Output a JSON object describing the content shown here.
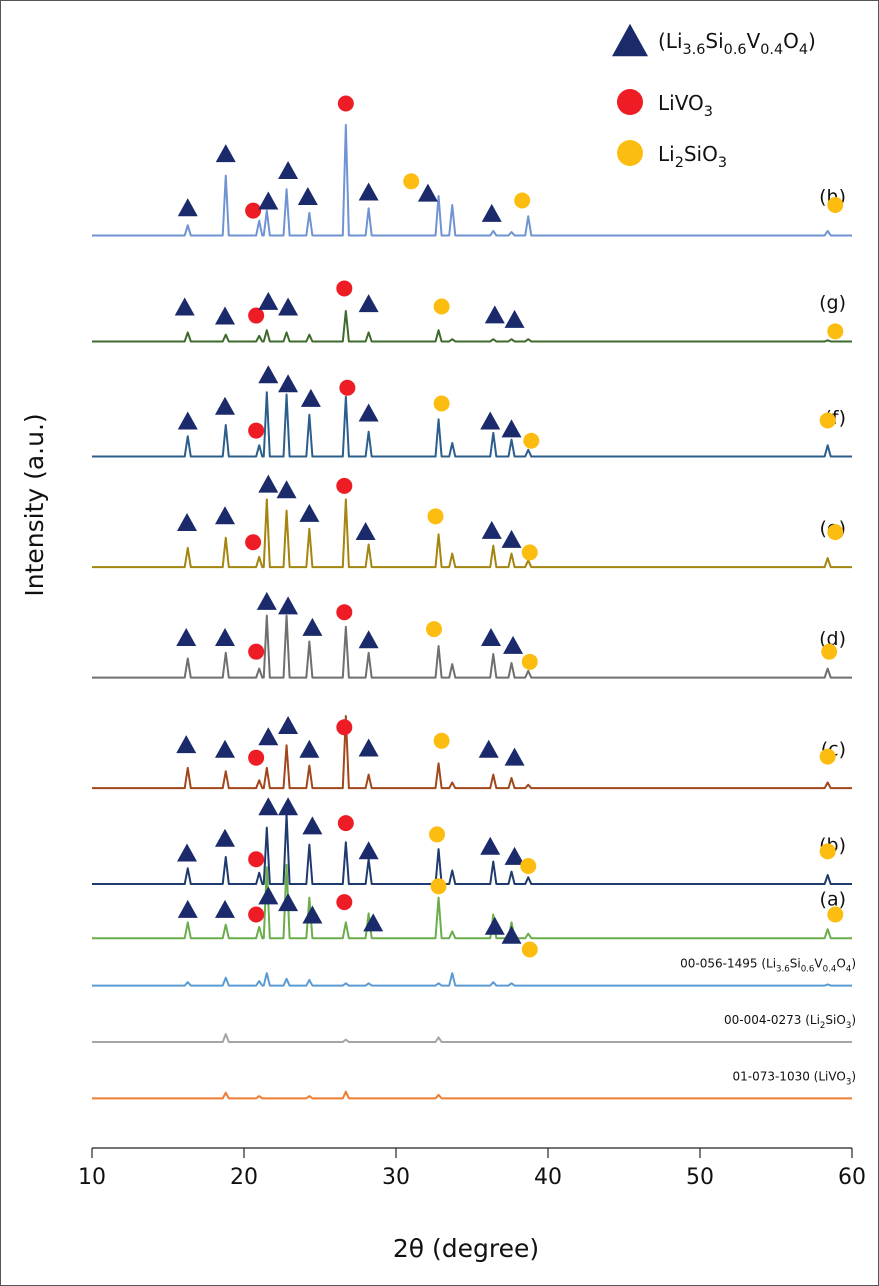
{
  "chart_data": {
    "type": "line",
    "xlabel": "2θ (degree)",
    "ylabel": "Intensity (a.u.)",
    "xlim": [
      10,
      60
    ],
    "xticks": [
      10,
      20,
      30,
      40,
      50,
      60
    ],
    "ylim": [
      0,
      100
    ],
    "phases": [
      {
        "name": "(Li3.6Si0.6V0.4O4)",
        "shape": "triangle",
        "color": "#1b2a6b"
      },
      {
        "name": "LiVO3",
        "shape": "circle",
        "color": "#ee1c24"
      },
      {
        "name": "Li2SiO3",
        "shape": "circle",
        "color": "#fdbd10"
      }
    ],
    "x": [
      10,
      16.1,
      16.3,
      16.5,
      18.6,
      18.8,
      19.0,
      20.8,
      21.0,
      21.2,
      21.3,
      21.5,
      21.7,
      22.6,
      22.8,
      23.0,
      24.1,
      24.3,
      24.5,
      26.5,
      26.7,
      26.9,
      28.0,
      28.2,
      28.4,
      32.6,
      32.8,
      33.0,
      33.5,
      33.7,
      33.9,
      36.2,
      36.4,
      36.6,
      37.4,
      37.6,
      37.8,
      38.5,
      38.7,
      38.9,
      58.2,
      58.4,
      58.6,
      60
    ],
    "series": [
      {
        "name": "(h)",
        "color": "#6f93d3",
        "values": [
          80.9,
          80.9,
          81.8,
          80.9,
          80.9,
          86.2,
          80.9,
          80.9,
          82.2,
          80.9,
          80.9,
          83.1,
          80.9,
          80.9,
          85.0,
          80.9,
          80.9,
          82.9,
          80.9,
          80.9,
          90.7,
          80.9,
          80.9,
          83.3,
          80.9,
          80.9,
          84.4,
          80.9,
          80.9,
          83.6,
          80.9,
          80.9,
          81.3,
          80.9,
          80.9,
          81.2,
          80.9,
          80.9,
          82.6,
          80.9,
          80.9,
          81.3,
          80.9,
          80.9
        ],
        "markers": [
          {
            "x": 16.3,
            "y": 83.4,
            "phase": 0
          },
          {
            "x": 18.8,
            "y": 88.2,
            "phase": 0
          },
          {
            "x": 20.6,
            "y": 83.1,
            "phase": 1
          },
          {
            "x": 21.6,
            "y": 84.0,
            "phase": 0
          },
          {
            "x": 22.9,
            "y": 86.7,
            "phase": 0
          },
          {
            "x": 24.2,
            "y": 84.4,
            "phase": 0
          },
          {
            "x": 26.7,
            "y": 92.6,
            "phase": 1
          },
          {
            "x": 28.2,
            "y": 84.8,
            "phase": 0
          },
          {
            "x": 31.0,
            "y": 85.7,
            "phase": 2
          },
          {
            "x": 32.1,
            "y": 84.7,
            "phase": 0
          },
          {
            "x": 36.3,
            "y": 82.9,
            "phase": 0
          },
          {
            "x": 38.3,
            "y": 84.0,
            "phase": 2
          },
          {
            "x": 58.9,
            "y": 83.6,
            "phase": 2
          }
        ]
      },
      {
        "name": "(g)",
        "color": "#3e6b2b",
        "values": [
          71.5,
          71.5,
          72.3,
          71.5,
          71.5,
          72.1,
          71.5,
          71.5,
          72.0,
          71.5,
          71.5,
          72.5,
          71.5,
          71.5,
          72.3,
          71.5,
          71.5,
          72.1,
          71.5,
          71.5,
          74.2,
          71.5,
          71.5,
          72.3,
          71.5,
          71.5,
          72.5,
          71.5,
          71.5,
          71.7,
          71.5,
          71.5,
          71.7,
          71.5,
          71.5,
          71.7,
          71.5,
          71.5,
          71.7,
          71.5,
          71.5,
          71.6,
          71.5,
          71.5
        ],
        "markers": [
          {
            "x": 16.1,
            "y": 74.6,
            "phase": 0
          },
          {
            "x": 18.75,
            "y": 73.8,
            "phase": 0
          },
          {
            "x": 20.8,
            "y": 73.8,
            "phase": 1
          },
          {
            "x": 21.6,
            "y": 75.1,
            "phase": 0
          },
          {
            "x": 22.9,
            "y": 74.6,
            "phase": 0
          },
          {
            "x": 26.6,
            "y": 76.2,
            "phase": 1
          },
          {
            "x": 28.2,
            "y": 74.9,
            "phase": 0
          },
          {
            "x": 33.0,
            "y": 74.6,
            "phase": 2
          },
          {
            "x": 36.5,
            "y": 73.9,
            "phase": 0
          },
          {
            "x": 37.8,
            "y": 73.5,
            "phase": 0
          },
          {
            "x": 58.9,
            "y": 72.4,
            "phase": 2
          }
        ]
      },
      {
        "name": "(f)",
        "color": "#2c5e8c",
        "values": [
          61.3,
          61.3,
          63.1,
          61.3,
          61.3,
          64.1,
          61.3,
          61.3,
          62.3,
          61.3,
          61.3,
          67.0,
          61.3,
          61.3,
          66.8,
          61.3,
          61.3,
          65.0,
          61.3,
          61.3,
          66.6,
          61.3,
          61.3,
          63.5,
          61.3,
          61.3,
          64.6,
          61.3,
          61.3,
          62.5,
          61.3,
          61.3,
          63.4,
          61.3,
          61.3,
          62.8,
          61.3,
          61.3,
          61.9,
          61.3,
          61.3,
          62.3,
          61.3,
          61.3
        ],
        "markers": [
          {
            "x": 16.3,
            "y": 64.5,
            "phase": 0
          },
          {
            "x": 18.75,
            "y": 65.8,
            "phase": 0
          },
          {
            "x": 20.8,
            "y": 63.6,
            "phase": 1
          },
          {
            "x": 21.6,
            "y": 68.6,
            "phase": 0
          },
          {
            "x": 22.9,
            "y": 67.8,
            "phase": 0
          },
          {
            "x": 24.4,
            "y": 66.5,
            "phase": 0
          },
          {
            "x": 26.8,
            "y": 67.4,
            "phase": 1
          },
          {
            "x": 28.2,
            "y": 65.2,
            "phase": 0
          },
          {
            "x": 33.0,
            "y": 66.0,
            "phase": 2
          },
          {
            "x": 36.2,
            "y": 64.5,
            "phase": 0
          },
          {
            "x": 37.6,
            "y": 63.8,
            "phase": 0
          },
          {
            "x": 38.9,
            "y": 62.7,
            "phase": 2
          },
          {
            "x": 58.4,
            "y": 64.5,
            "phase": 2
          }
        ]
      },
      {
        "name": "(e)",
        "color": "#a3850f",
        "values": [
          51.5,
          51.5,
          53.2,
          51.5,
          51.5,
          54.1,
          51.5,
          51.5,
          52.4,
          51.5,
          51.5,
          57.5,
          51.5,
          51.5,
          56.5,
          51.5,
          51.5,
          54.9,
          51.5,
          51.5,
          57.5,
          51.5,
          51.5,
          53.5,
          51.5,
          51.5,
          54.4,
          51.5,
          51.5,
          52.7,
          51.5,
          51.5,
          53.4,
          51.5,
          51.5,
          52.7,
          51.5,
          51.5,
          52.1,
          51.5,
          51.5,
          52.3,
          51.5,
          51.5
        ],
        "markers": [
          {
            "x": 16.25,
            "y": 55.5,
            "phase": 0
          },
          {
            "x": 18.75,
            "y": 56.1,
            "phase": 0
          },
          {
            "x": 20.6,
            "y": 53.7,
            "phase": 1
          },
          {
            "x": 21.6,
            "y": 58.9,
            "phase": 0
          },
          {
            "x": 22.8,
            "y": 58.4,
            "phase": 0
          },
          {
            "x": 24.3,
            "y": 56.3,
            "phase": 0
          },
          {
            "x": 26.6,
            "y": 58.7,
            "phase": 1
          },
          {
            "x": 28.0,
            "y": 54.7,
            "phase": 0
          },
          {
            "x": 32.6,
            "y": 56.0,
            "phase": 2
          },
          {
            "x": 36.3,
            "y": 54.8,
            "phase": 0
          },
          {
            "x": 37.6,
            "y": 54.0,
            "phase": 0
          },
          {
            "x": 38.8,
            "y": 52.8,
            "phase": 2
          },
          {
            "x": 58.9,
            "y": 54.6,
            "phase": 2
          }
        ]
      },
      {
        "name": "(d)",
        "color": "#6f6f6f",
        "values": [
          41.7,
          41.7,
          43.4,
          41.7,
          41.7,
          43.9,
          41.7,
          41.7,
          42.5,
          41.7,
          41.7,
          47.2,
          41.7,
          41.7,
          47.2,
          41.7,
          41.7,
          44.9,
          41.7,
          41.7,
          46.2,
          41.7,
          41.7,
          43.9,
          41.7,
          41.7,
          44.5,
          41.7,
          41.7,
          42.9,
          41.7,
          41.7,
          43.8,
          41.7,
          41.7,
          43.0,
          41.7,
          41.7,
          42.3,
          41.7,
          41.7,
          42.5,
          41.7,
          41.7
        ],
        "markers": [
          {
            "x": 16.2,
            "y": 45.3,
            "phase": 0
          },
          {
            "x": 18.75,
            "y": 45.3,
            "phase": 0
          },
          {
            "x": 20.8,
            "y": 44.0,
            "phase": 1
          },
          {
            "x": 21.5,
            "y": 48.5,
            "phase": 0
          },
          {
            "x": 22.9,
            "y": 48.1,
            "phase": 0
          },
          {
            "x": 24.5,
            "y": 46.2,
            "phase": 0
          },
          {
            "x": 26.6,
            "y": 47.5,
            "phase": 1
          },
          {
            "x": 28.2,
            "y": 45.1,
            "phase": 0
          },
          {
            "x": 32.5,
            "y": 46.0,
            "phase": 2
          },
          {
            "x": 36.25,
            "y": 45.3,
            "phase": 0
          },
          {
            "x": 37.7,
            "y": 44.6,
            "phase": 0
          },
          {
            "x": 38.8,
            "y": 43.1,
            "phase": 2
          },
          {
            "x": 58.5,
            "y": 44.0,
            "phase": 2
          }
        ]
      },
      {
        "name": "(c)",
        "color": "#a2461c",
        "values": [
          31.9,
          31.9,
          33.7,
          31.9,
          31.9,
          33.4,
          31.9,
          31.9,
          32.6,
          31.9,
          31.9,
          33.7,
          31.9,
          31.9,
          35.7,
          31.9,
          31.9,
          33.9,
          31.9,
          31.9,
          38.3,
          31.9,
          31.9,
          33.1,
          31.9,
          31.9,
          34.1,
          31.9,
          31.9,
          32.4,
          31.9,
          31.9,
          33.1,
          31.9,
          31.9,
          32.8,
          31.9,
          31.9,
          32.2,
          31.9,
          31.9,
          32.4,
          31.9,
          31.9
        ],
        "markers": [
          {
            "x": 16.2,
            "y": 35.8,
            "phase": 0
          },
          {
            "x": 18.75,
            "y": 35.4,
            "phase": 0
          },
          {
            "x": 20.8,
            "y": 34.6,
            "phase": 1
          },
          {
            "x": 21.6,
            "y": 36.5,
            "phase": 0
          },
          {
            "x": 22.9,
            "y": 37.5,
            "phase": 0
          },
          {
            "x": 24.3,
            "y": 35.4,
            "phase": 0
          },
          {
            "x": 26.6,
            "y": 37.3,
            "phase": 1
          },
          {
            "x": 28.2,
            "y": 35.5,
            "phase": 0
          },
          {
            "x": 33.0,
            "y": 36.1,
            "phase": 2
          },
          {
            "x": 36.1,
            "y": 35.4,
            "phase": 0
          },
          {
            "x": 37.8,
            "y": 34.7,
            "phase": 0
          },
          {
            "x": 58.4,
            "y": 34.7,
            "phase": 2
          }
        ]
      },
      {
        "name": "(b)",
        "color": "#1f3a6e",
        "values": [
          23.4,
          23.4,
          24.8,
          23.4,
          23.4,
          25.8,
          23.4,
          23.4,
          24.4,
          23.4,
          23.4,
          28.4,
          23.4,
          23.4,
          29.6,
          23.4,
          23.4,
          26.9,
          23.4,
          23.4,
          27.1,
          23.4,
          23.4,
          25.6,
          23.4,
          23.4,
          26.5,
          23.4,
          23.4,
          24.6,
          23.4,
          23.4,
          25.4,
          23.4,
          23.4,
          24.5,
          23.4,
          23.4,
          24.0,
          23.4,
          23.4,
          24.2,
          23.4,
          23.4
        ],
        "markers": [
          {
            "x": 16.25,
            "y": 26.2,
            "phase": 0
          },
          {
            "x": 18.75,
            "y": 27.5,
            "phase": 0
          },
          {
            "x": 20.8,
            "y": 25.6,
            "phase": 1
          },
          {
            "x": 21.6,
            "y": 30.3,
            "phase": 0
          },
          {
            "x": 22.9,
            "y": 30.3,
            "phase": 0
          },
          {
            "x": 24.5,
            "y": 28.6,
            "phase": 0
          },
          {
            "x": 26.7,
            "y": 28.8,
            "phase": 1
          },
          {
            "x": 28.2,
            "y": 26.4,
            "phase": 0
          },
          {
            "x": 32.7,
            "y": 27.8,
            "phase": 2
          },
          {
            "x": 36.2,
            "y": 26.8,
            "phase": 0
          },
          {
            "x": 37.8,
            "y": 25.9,
            "phase": 0
          },
          {
            "x": 38.7,
            "y": 25.0,
            "phase": 2
          },
          {
            "x": 58.4,
            "y": 26.3,
            "phase": 2
          }
        ]
      },
      {
        "name": "(a)",
        "color": "#6cad4b",
        "values": [
          18.6,
          18.6,
          20.0,
          18.6,
          18.6,
          19.8,
          18.6,
          18.6,
          19.6,
          18.6,
          18.6,
          24.9,
          18.6,
          18.6,
          25.1,
          18.6,
          18.6,
          22.2,
          18.6,
          18.6,
          20.0,
          18.6,
          18.6,
          20.8,
          18.6,
          18.6,
          22.2,
          18.6,
          18.6,
          19.2,
          18.6,
          18.6,
          20.7,
          18.6,
          18.6,
          20.0,
          18.6,
          18.6,
          19.0,
          18.6,
          18.6,
          19.4,
          18.6,
          18.6
        ],
        "markers": [
          {
            "x": 16.3,
            "y": 21.2,
            "phase": 0
          },
          {
            "x": 18.75,
            "y": 21.2,
            "phase": 0
          },
          {
            "x": 20.8,
            "y": 20.7,
            "phase": 1
          },
          {
            "x": 21.6,
            "y": 22.4,
            "phase": 0
          },
          {
            "x": 22.9,
            "y": 21.8,
            "phase": 0
          },
          {
            "x": 24.5,
            "y": 20.7,
            "phase": 0
          },
          {
            "x": 26.6,
            "y": 21.8,
            "phase": 1
          },
          {
            "x": 28.5,
            "y": 20.0,
            "phase": 0
          },
          {
            "x": 32.8,
            "y": 23.2,
            "phase": 2
          },
          {
            "x": 36.5,
            "y": 19.7,
            "phase": 0
          },
          {
            "x": 37.6,
            "y": 18.9,
            "phase": 0
          },
          {
            "x": 38.8,
            "y": 17.6,
            "phase": 2
          },
          {
            "x": 58.9,
            "y": 20.7,
            "phase": 2
          }
        ]
      },
      {
        "name": "00-056-1495 (Li3.6Si0.6V0.4O4)",
        "color": "#5b9bd5",
        "values": [
          14.4,
          14.4,
          14.7,
          14.4,
          14.4,
          15.1,
          14.4,
          14.4,
          14.8,
          14.4,
          14.4,
          15.5,
          14.4,
          14.4,
          15.0,
          14.4,
          14.4,
          14.9,
          14.4,
          14.4,
          14.6,
          14.4,
          14.4,
          14.6,
          14.4,
          14.4,
          14.6,
          14.4,
          14.4,
          15.5,
          14.4,
          14.4,
          14.7,
          14.4,
          14.4,
          14.6,
          14.4,
          14.4,
          14.4,
          14.4,
          14.4,
          14.5,
          14.4,
          14.4
        ]
      },
      {
        "name": "00-004-0273 (Li2SiO3)",
        "color": "#a5a5a5",
        "values": [
          9.4,
          9.4,
          9.4,
          9.4,
          9.4,
          10.1,
          9.4,
          9.4,
          9.4,
          9.4,
          9.4,
          9.4,
          9.4,
          9.4,
          9.4,
          9.4,
          9.4,
          9.4,
          9.4,
          9.4,
          9.6,
          9.4,
          9.4,
          9.4,
          9.4,
          9.4,
          9.8,
          9.4,
          9.4,
          9.4,
          9.4,
          9.4,
          9.4,
          9.4,
          9.4,
          9.4,
          9.4,
          9.4,
          9.4,
          9.4,
          9.4,
          9.4,
          9.4,
          9.4
        ]
      },
      {
        "name": "01-073-1030 (LiVO3)",
        "color": "#ed7d31",
        "values": [
          4.4,
          4.4,
          4.4,
          4.4,
          4.4,
          4.9,
          4.4,
          4.4,
          4.6,
          4.4,
          4.4,
          4.4,
          4.4,
          4.4,
          4.4,
          4.4,
          4.4,
          4.6,
          4.4,
          4.4,
          5.0,
          4.4,
          4.4,
          4.4,
          4.4,
          4.4,
          4.7,
          4.4,
          4.4,
          4.4,
          4.4,
          4.4,
          4.4,
          4.4,
          4.4,
          4.4,
          4.4,
          4.4,
          4.4,
          4.4,
          4.4,
          4.4,
          4.4,
          4.4
        ]
      }
    ]
  }
}
